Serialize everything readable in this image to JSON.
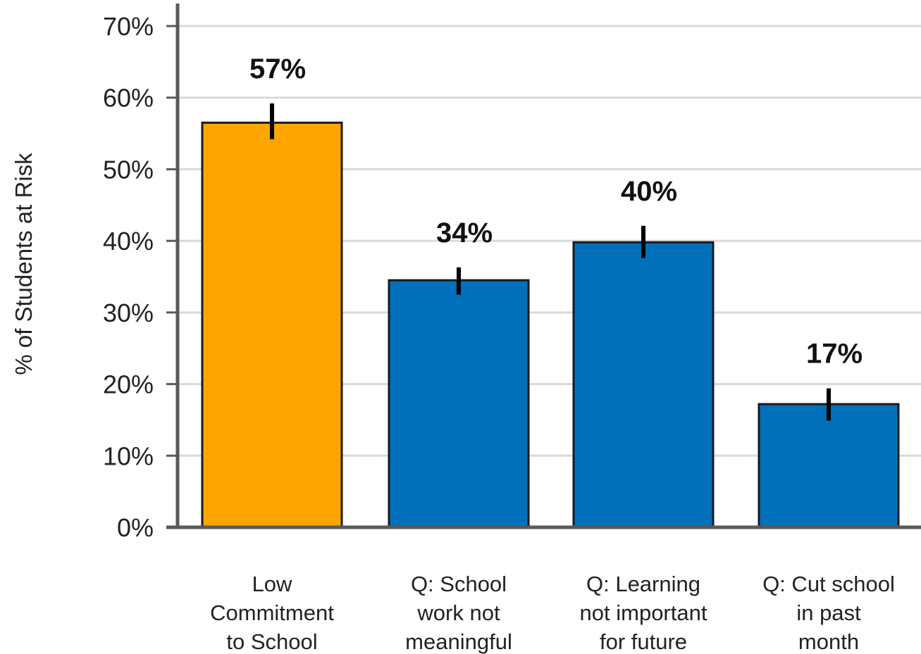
{
  "chart_data": {
    "type": "bar",
    "title": "",
    "xlabel": "",
    "ylabel": "% of Students at Risk",
    "ylim": [
      0,
      70
    ],
    "yticks": [
      0,
      10,
      20,
      30,
      40,
      50,
      60,
      70
    ],
    "ytick_format": "percent",
    "grid": "horizontal",
    "legend": "none",
    "categories": [
      [
        "Low",
        "Commitment",
        "to School"
      ],
      [
        "Q: School",
        "work not",
        "meaningful"
      ],
      [
        "Q: Learning",
        "not important",
        "for future"
      ],
      [
        "Q: Cut school",
        "in past",
        "month"
      ]
    ],
    "values": [
      57,
      34,
      40,
      17
    ],
    "bar_tops": [
      56.5,
      34.5,
      39.8,
      17.2
    ],
    "error_bars": [
      [
        54.2,
        59.2
      ],
      [
        32.5,
        36.3
      ],
      [
        37.6,
        42.1
      ],
      [
        14.9,
        19.4
      ]
    ],
    "data_labels": [
      "57%",
      "34%",
      "40%",
      "17%"
    ],
    "bar_colors": [
      "#FFA500",
      "#0070BA",
      "#0070BA",
      "#0070BA"
    ],
    "bar_edge_color": "#1a1a1a",
    "grid_color": "#d9d9d9",
    "axis_color": "#595959"
  }
}
